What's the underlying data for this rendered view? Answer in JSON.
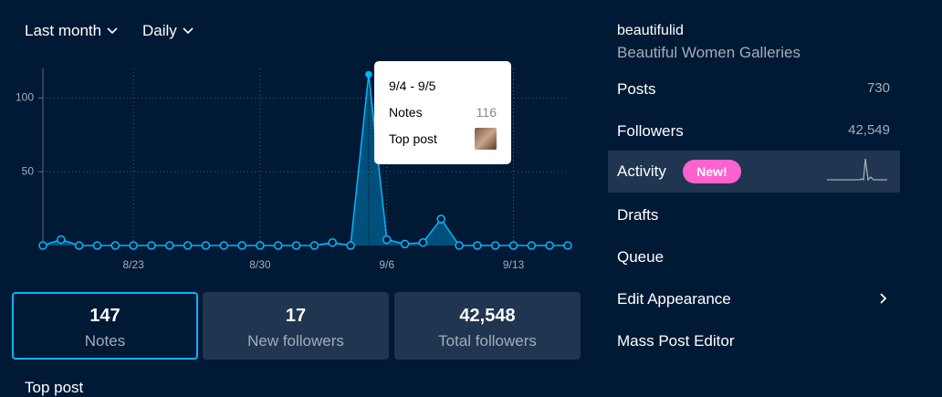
{
  "filters": {
    "range": "Last month",
    "interval": "Daily"
  },
  "chart_data": {
    "type": "line",
    "categories": [
      null,
      null,
      null,
      null,
      null,
      "8/23",
      null,
      null,
      null,
      null,
      null,
      null,
      "8/30",
      null,
      null,
      null,
      null,
      null,
      null,
      "9/6",
      null,
      null,
      null,
      null,
      null,
      null,
      "9/13",
      null,
      null,
      null
    ],
    "series": [
      {
        "name": "Notes",
        "color": "#00b8ff",
        "values": [
          0,
          4,
          0,
          0,
          0,
          0,
          0,
          0,
          0,
          0,
          0,
          0,
          0,
          0,
          0,
          0,
          2,
          0,
          116,
          4,
          1,
          2,
          18,
          0,
          0,
          0,
          0,
          0,
          0,
          0
        ]
      }
    ],
    "ylim": [
      0,
      120
    ],
    "yticks": [
      50,
      100
    ],
    "grid": true,
    "tooltip": {
      "title": "9/4 - 9/5",
      "label": "Top post"
    }
  },
  "stats": [
    {
      "value": "147",
      "label": "Notes"
    },
    {
      "value": "17",
      "label": "New followers"
    },
    {
      "value": "42,548",
      "label": "Total followers"
    }
  ],
  "section_title": "Top post",
  "sidebar": {
    "blog_name": "beautifulid",
    "blog_title": "Beautiful Women Galleries",
    "menu": [
      {
        "label": "Posts",
        "count": "730"
      },
      {
        "label": "Followers",
        "count": "42,549"
      },
      {
        "label": "Activity",
        "badge": "New!"
      },
      {
        "label": "Drafts"
      },
      {
        "label": "Queue"
      },
      {
        "label": "Edit Appearance"
      },
      {
        "label": "Mass Post Editor"
      }
    ]
  }
}
